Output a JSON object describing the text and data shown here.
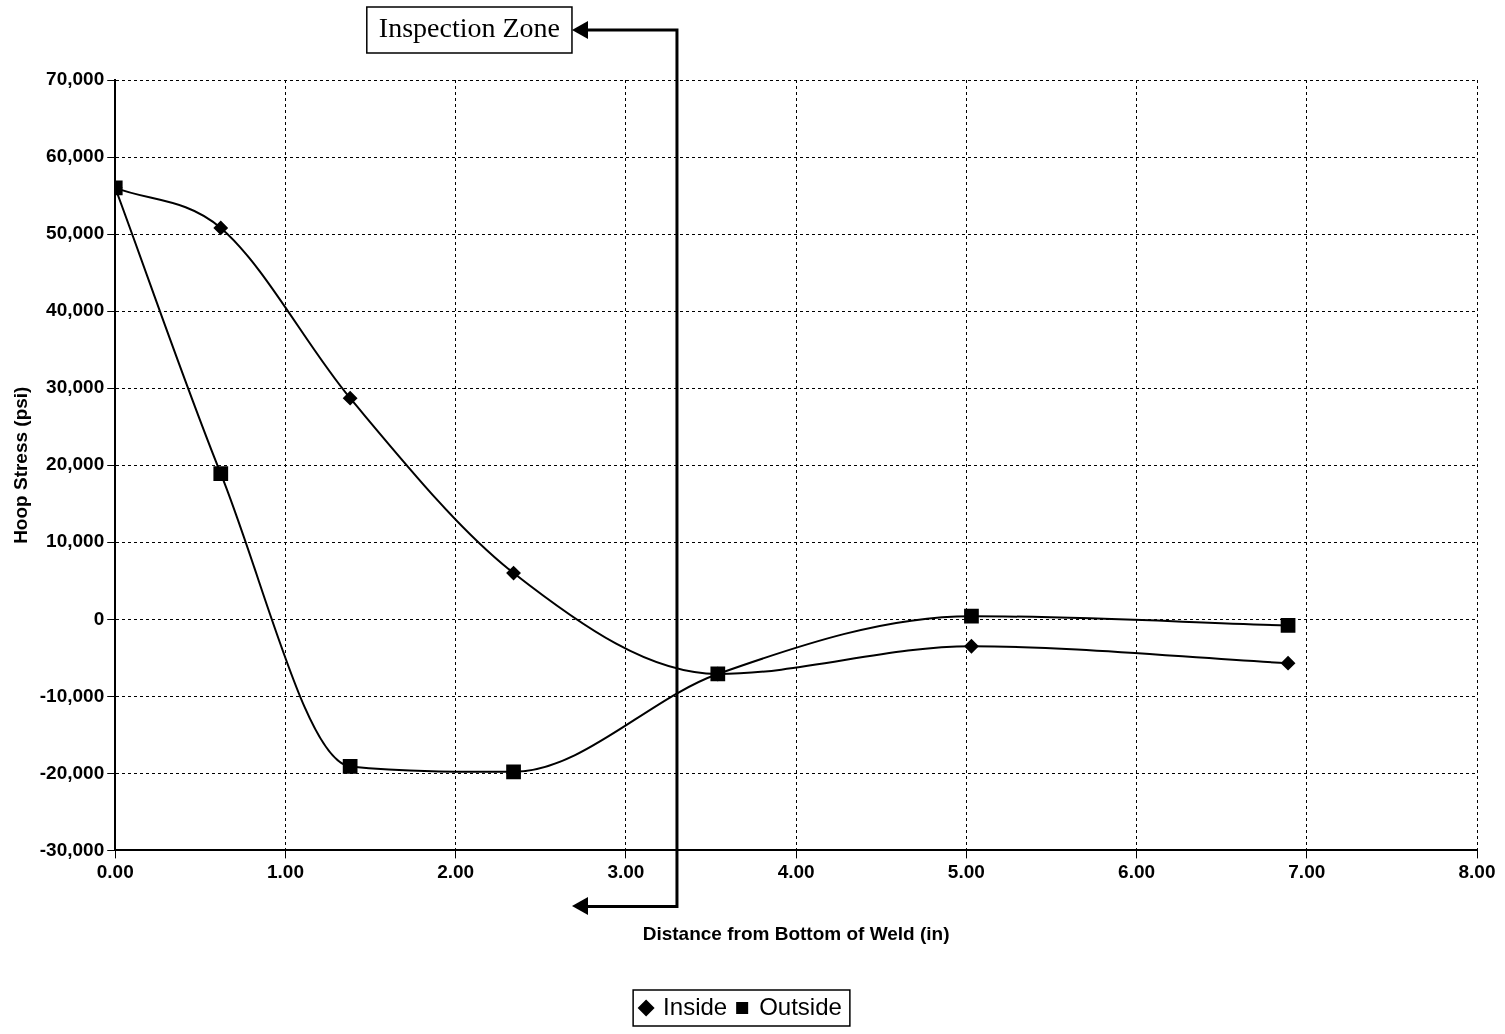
{
  "chart_data": {
    "type": "line",
    "xlabel": "Distance from Bottom of Weld (in)",
    "ylabel": "Hoop Stress (psi)",
    "xlim": [
      0,
      8
    ],
    "xticks": [
      {
        "value": 0,
        "label": "0.00"
      },
      {
        "value": 1,
        "label": "1.00"
      },
      {
        "value": 2,
        "label": "2.00"
      },
      {
        "value": 3,
        "label": "3.00"
      },
      {
        "value": 4,
        "label": "4.00"
      },
      {
        "value": 5,
        "label": "5.00"
      },
      {
        "value": 6,
        "label": "6.00"
      },
      {
        "value": 7,
        "label": "7.00"
      },
      {
        "value": 8,
        "label": "8.00"
      }
    ],
    "ylim": [
      -30000,
      70000
    ],
    "yticks": [
      {
        "value": -30000,
        "label": "-30,000"
      },
      {
        "value": -20000,
        "label": "-20,000"
      },
      {
        "value": -10000,
        "label": "-10,000"
      },
      {
        "value": 0,
        "label": "0"
      },
      {
        "value": 10000,
        "label": "10,000"
      },
      {
        "value": 20000,
        "label": "20,000"
      },
      {
        "value": 30000,
        "label": "30,000"
      },
      {
        "value": 40000,
        "label": "40,000"
      },
      {
        "value": 50000,
        "label": "50,000"
      },
      {
        "value": 60000,
        "label": "60,000"
      },
      {
        "value": 70000,
        "label": "70,000"
      }
    ],
    "x": [
      0,
      0.62,
      1.38,
      2.34,
      3.54,
      5.03,
      6.89
    ],
    "series": [
      {
        "name": "Inside",
        "color": "#000000",
        "marker": "diamond",
        "values": [
          56000,
          50800,
          28700,
          6000,
          -7100,
          -3500,
          -5700
        ]
      },
      {
        "name": "Outside",
        "color": "#000000",
        "marker": "square",
        "values": [
          56000,
          18900,
          -19100,
          -19800,
          -7100,
          400,
          -800
        ]
      }
    ],
    "ref_lines": [
      {
        "axis": "x",
        "value": 3.3,
        "label": "Inspection Zone",
        "color": "#000000"
      }
    ],
    "grid": true,
    "legend": "bottom",
    "line_style": "solid"
  }
}
